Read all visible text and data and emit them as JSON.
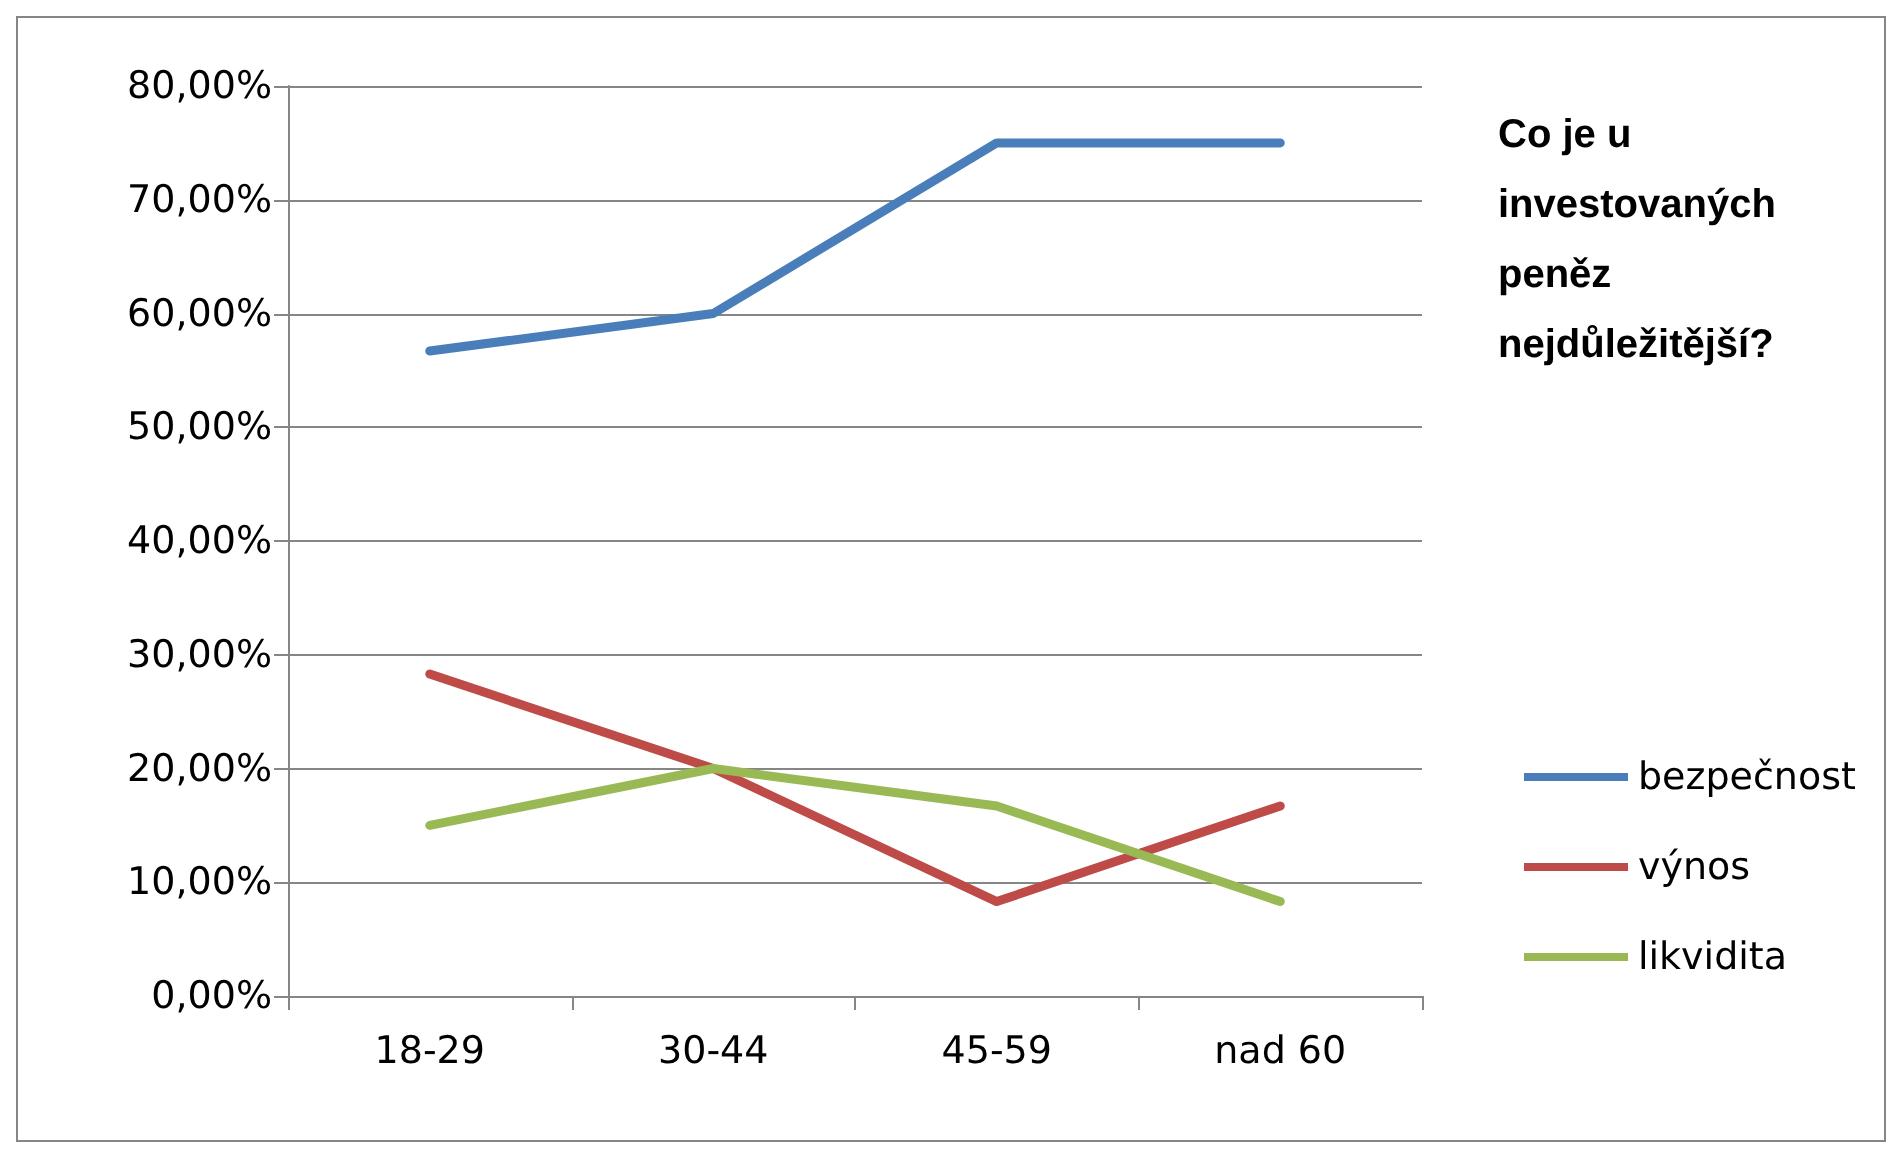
{
  "chart_data": {
    "type": "line",
    "title": "Co je u investovaných peněz nejdůležitější?",
    "categories": [
      "18-29",
      "30-44",
      "45-59",
      "nad 60"
    ],
    "series": [
      {
        "name": "bezpečnost",
        "color": "#4a7ebb",
        "values": [
          56.7,
          60,
          75,
          75
        ]
      },
      {
        "name": "výnos",
        "color": "#be4b48",
        "values": [
          28.3,
          20,
          8.3,
          16.7
        ]
      },
      {
        "name": "likvidita",
        "color": "#98b954",
        "values": [
          15,
          20,
          16.7,
          8.3
        ]
      }
    ],
    "ylim": [
      0,
      80
    ],
    "yticks": [
      {
        "value": 0,
        "label": "0,00%"
      },
      {
        "value": 10,
        "label": "10,00%"
      },
      {
        "value": 20,
        "label": "20,00%"
      },
      {
        "value": 30,
        "label": "30,00%"
      },
      {
        "value": 40,
        "label": "40,00%"
      },
      {
        "value": 50,
        "label": "50,00%"
      },
      {
        "value": 60,
        "label": "60,00%"
      },
      {
        "value": 70,
        "label": "70,00%"
      },
      {
        "value": 80,
        "label": "80,00%"
      }
    ],
    "grid": "y",
    "legend": "right",
    "marker": "none",
    "line_style": "solid"
  }
}
